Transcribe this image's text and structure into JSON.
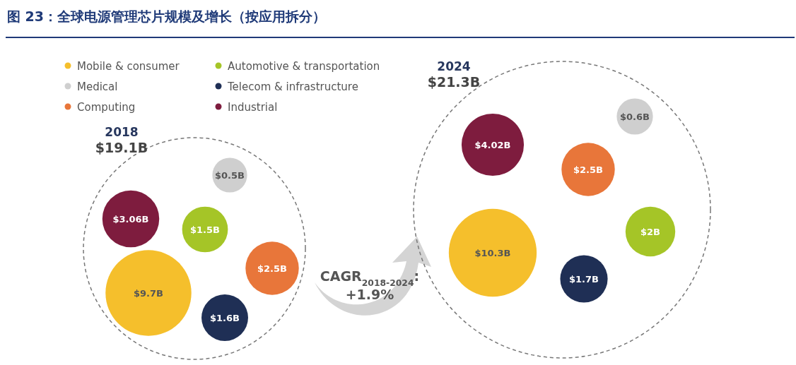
{
  "chart_data": {
    "type": "other",
    "title": "图 23：全球电源管理芯片规模及增长（按应用拆分）",
    "categories": [
      "2018",
      "2024"
    ],
    "series": [
      {
        "name": "Mobile & consumer",
        "color": "#f5bf2c",
        "values": [
          9.7,
          10.3
        ],
        "value_labels": [
          "$9.7B",
          "$10.3B"
        ]
      },
      {
        "name": "Medical",
        "color": "#cfcfcf",
        "values": [
          0.5,
          0.6
        ],
        "value_labels": [
          "$0.5B",
          "$0.6B"
        ]
      },
      {
        "name": "Computing",
        "color": "#e8763a",
        "values": [
          2.5,
          2.5
        ],
        "value_labels": [
          "$2.5B",
          "$2.5B"
        ]
      },
      {
        "name": "Automotive & transportation",
        "color": "#a5c527",
        "values": [
          1.5,
          2
        ],
        "value_labels": [
          "$1.5B",
          "$2B"
        ]
      },
      {
        "name": "Telecom & infrastructure",
        "color": "#1f2f55",
        "values": [
          1.6,
          1.7
        ],
        "value_labels": [
          "$1.6B",
          "$1.7B"
        ]
      },
      {
        "name": "Industrial",
        "color": "#7e1c3e",
        "values": [
          3.06,
          4.02
        ],
        "value_labels": [
          "$3.06B",
          "$4.02B"
        ]
      }
    ],
    "totals": [
      "$19.1B",
      "$21.3B"
    ],
    "annotations": [
      "CAGR$_{2018-2024}$:",
      "+1.9%"
    ],
    "legend": "top left"
  }
}
